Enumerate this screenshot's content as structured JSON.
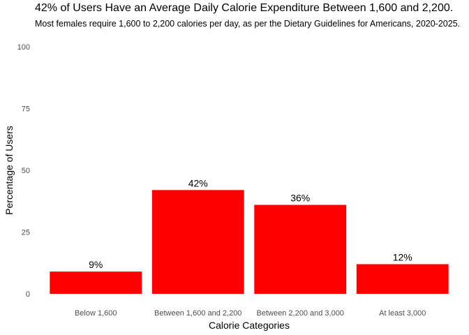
{
  "title": "42% of Users Have an Average Daily Calorie Expenditure Between 1,600 and 2,200.",
  "subtitle": "Most females require 1,600 to 2,200 calories per day, as per the Dietary Guidelines for Americans, 2020-2025.",
  "chart_data": {
    "type": "bar",
    "title": "42% of Users Have an Average Daily Calorie Expenditure Between 1,600 and 2,200.",
    "subtitle": "Most females require 1,600 to 2,200 calories per day, as per the Dietary Guidelines for Americans, 2020-2025.",
    "xlabel": "Calorie Categories",
    "ylabel": "Percentage of Users",
    "categories": [
      "Below 1,600",
      "Between 1,600 and 2,200",
      "Between 2,200 and 3,000",
      "At least 3,000"
    ],
    "values": [
      9,
      42,
      36,
      12
    ],
    "data_labels": [
      "9%",
      "42%",
      "36%",
      "12%"
    ],
    "ylim": [
      0,
      100
    ],
    "yticks": [
      0,
      25,
      50,
      75,
      100
    ],
    "grid": false,
    "legend": "none",
    "bar_color": "#ff0000"
  }
}
